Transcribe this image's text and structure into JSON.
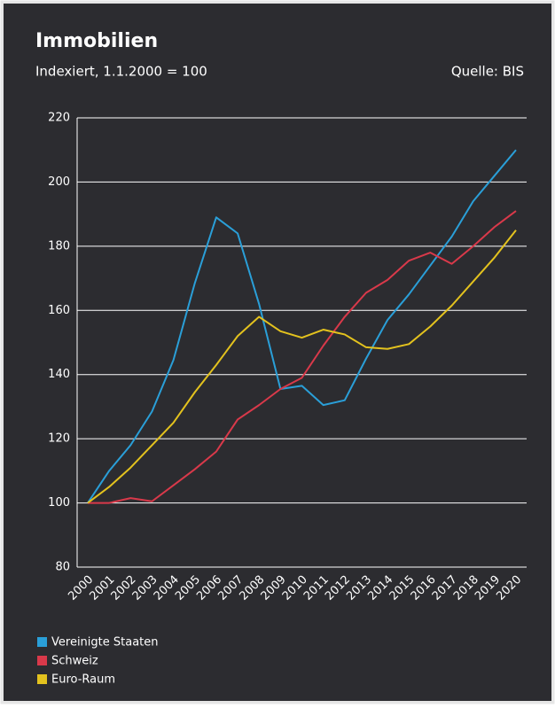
{
  "chart_data": {
    "type": "line",
    "title": "Immobilien",
    "subtitle": "Indexiert, 1.1.2000 = 100",
    "source": "Quelle: BIS",
    "categories": [
      "2000",
      "2001",
      "2002",
      "2003",
      "2004",
      "2005",
      "2006",
      "2007",
      "2008",
      "2009",
      "2010",
      "2011",
      "2012",
      "2013",
      "2014",
      "2015",
      "2016",
      "2017",
      "2018",
      "2019",
      "2020"
    ],
    "series": [
      {
        "name": "Vereinigte Staaten",
        "color": "#2a9fd8",
        "values": [
          100,
          110,
          118,
          128.5,
          144.5,
          168.5,
          189,
          184,
          162,
          135.5,
          136.5,
          130.5,
          132,
          145,
          157,
          165,
          174,
          183,
          194,
          202,
          210
        ]
      },
      {
        "name": "Schweiz",
        "color": "#d9394a",
        "values": [
          100,
          100,
          101.5,
          100.5,
          105.5,
          110.5,
          116,
          126,
          130.5,
          135.5,
          139,
          149,
          158,
          165.5,
          169.5,
          175.5,
          178,
          174.5,
          180,
          186,
          191
        ]
      },
      {
        "name": "Euro-Raum",
        "color": "#e3c21e",
        "values": [
          100,
          105,
          111,
          118,
          125,
          134.5,
          143,
          152,
          158,
          153.5,
          151.5,
          154,
          152.5,
          148.5,
          148,
          149.5,
          155,
          161.5,
          169,
          176.5,
          185
        ]
      }
    ],
    "ylim": [
      80,
      220
    ],
    "yticks": [
      80,
      100,
      120,
      140,
      160,
      180,
      200,
      220
    ],
    "grid": true,
    "legend": "bottom-left"
  }
}
